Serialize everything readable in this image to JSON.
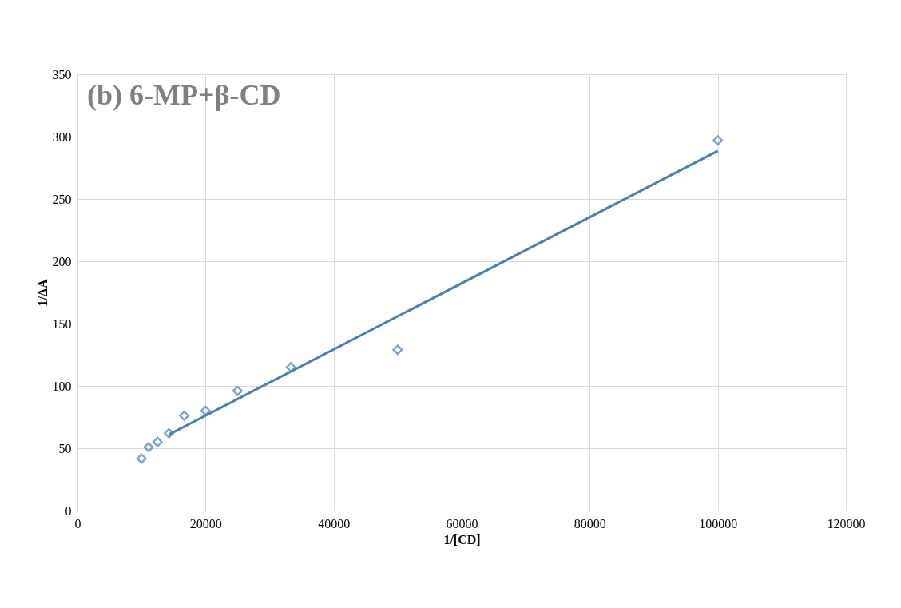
{
  "chart_data": {
    "type": "scatter",
    "title": "(b) 6-MP+β-CD",
    "xlabel": "1/[CD]",
    "ylabel": "1/ΔA",
    "xlim": [
      0,
      120000
    ],
    "xticks": [
      0,
      20000,
      40000,
      60000,
      80000,
      100000,
      120000
    ],
    "ylim": [
      0,
      350
    ],
    "yticks": [
      0,
      50,
      100,
      150,
      200,
      250,
      300,
      350
    ],
    "grid": true,
    "series": [
      {
        "color": "#4a7ebb",
        "marker": "diamond",
        "x": [
          10000,
          11111,
          12500,
          14286,
          16667,
          20000,
          25000,
          33333,
          50000,
          100000
        ],
        "values": [
          41.7,
          50.8,
          55,
          62,
          76,
          80,
          96,
          115,
          129,
          297
        ]
      },
      {
        "type": "line",
        "color": "#4a7ebb",
        "x": [
          14286,
          100000
        ],
        "values": [
          61,
          288.5
        ]
      }
    ]
  }
}
